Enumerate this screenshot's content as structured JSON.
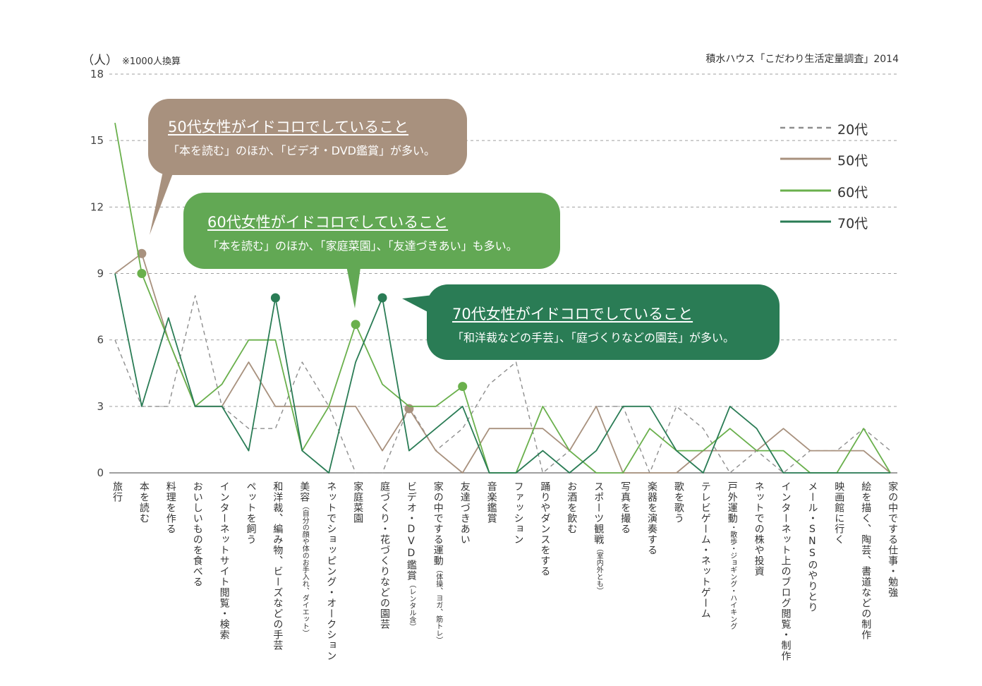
{
  "chart_data": {
    "type": "line",
    "unit_label": "（人）",
    "unit_note": "※1000人換算",
    "source": "積水ハウス「こだわり生活定量調査」2014",
    "ylim": [
      0,
      18
    ],
    "yticks": [
      0,
      3,
      6,
      9,
      12,
      15,
      18
    ],
    "categories": [
      "旅行",
      "本を読む",
      "料理を作る",
      "おいしいものを食べる",
      "インターネットサイト閲覧・検索",
      "ペットを飼う",
      "和洋裁、編み物、ビーズなどの手芸",
      "美容",
      "ネットでショッピング・オークション",
      "家庭菜園",
      "庭づくり・花づくりなどの園芸",
      "ビデオ・DVD鑑賞",
      "家の中でする運動",
      "友達づきあい",
      "音楽鑑賞",
      "ファッション",
      "踊りやダンスをする",
      "お酒を飲む",
      "スポーツ観戦",
      "写真を撮る",
      "楽器を演奏する",
      "歌を歌う",
      "テレビゲーム・ネットゲーム",
      "戸外運動",
      "ネットでの株や投資",
      "インターネット上のブログ閲覧・制作",
      "メール・SNSのやりとり",
      "映画館に行く",
      "絵を描く、陶芸、書道などの制作",
      "家の中でする仕事・勉強"
    ],
    "category_notes": [
      "",
      "",
      "",
      "",
      "",
      "",
      "",
      "（自分の顔や体のお手入れ、ダイエット）",
      "",
      "",
      "",
      "（レンタル含）",
      "（体操、ヨガ、筋トレ）",
      "",
      "",
      "",
      "",
      "",
      "（室内外とも）",
      "",
      "",
      "",
      "",
      "・散歩・ジョギング・ハイキング",
      "",
      "",
      "",
      "",
      "",
      ""
    ],
    "series": [
      {
        "name": "20代",
        "color": "#8e8e8e",
        "dash": true,
        "values": [
          6,
          3,
          3,
          8,
          3,
          2,
          2,
          5,
          3,
          0,
          0,
          3,
          1,
          2,
          4,
          5,
          0,
          1,
          3,
          3,
          0,
          3,
          2,
          0,
          1,
          0,
          1,
          1,
          2,
          1
        ],
        "highlight": []
      },
      {
        "name": "50代",
        "color": "#a8917e",
        "dash": false,
        "values": [
          9,
          9.9,
          6,
          3,
          3,
          5,
          3,
          3,
          3,
          3,
          1,
          2.9,
          1,
          0,
          2,
          2,
          2,
          1,
          3,
          0,
          0,
          0,
          1,
          1,
          1,
          2,
          1,
          1,
          1,
          0
        ],
        "highlight": [
          1,
          11
        ]
      },
      {
        "name": "60代",
        "color": "#6ab04c",
        "dash": false,
        "values": [
          15.8,
          9,
          6,
          3,
          4,
          6,
          6,
          1,
          3,
          6.7,
          4,
          3,
          3,
          3.9,
          0,
          0,
          3,
          1,
          0,
          0,
          2,
          1,
          1,
          2,
          1,
          1,
          0,
          0,
          2,
          0
        ],
        "highlight": [
          1,
          9,
          13
        ]
      },
      {
        "name": "70代",
        "color": "#2a7c55",
        "dash": false,
        "values": [
          9,
          3,
          7,
          3,
          3,
          1,
          7.9,
          1,
          0,
          5,
          7.9,
          1,
          2,
          3,
          0,
          0,
          1,
          0,
          1,
          3,
          3,
          1,
          0,
          3,
          2,
          0,
          0,
          0,
          0,
          0
        ],
        "highlight": [
          6,
          10
        ]
      }
    ]
  },
  "callouts": [
    {
      "title": "50代女性がイドコロでしていること",
      "body": "「本を読む」のほか、「ビデオ・DVD鑑賞」が多い。"
    },
    {
      "title": "60代女性がイドコロでしていること",
      "body": "「本を読む」のほか、「家庭菜園」、「友達づきあい」も多い。"
    },
    {
      "title": "70代女性がイドコロでしていること",
      "body": "「和洋裁などの手芸」、「庭づくりなどの園芸」が多い。"
    }
  ]
}
